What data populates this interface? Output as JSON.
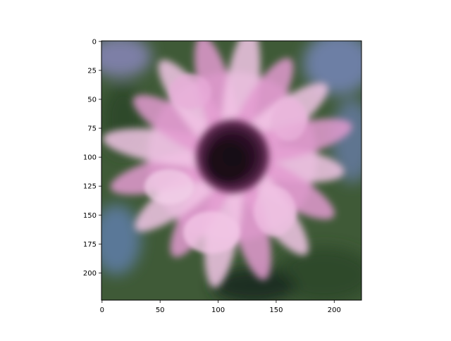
{
  "image": {
    "subject": "pink-daisy-flower-icon",
    "colors": {
      "background_green": "#3f5a37",
      "background_blue": "#6d7fa5",
      "petal_pink": "#e39ad0",
      "petal_light": "#f2c6e6",
      "center_dark": "#2a1025"
    }
  },
  "x_axis": {
    "ticks": [
      "0",
      "50",
      "100",
      "150",
      "200"
    ]
  },
  "y_axis": {
    "ticks": [
      "0",
      "25",
      "50",
      "75",
      "100",
      "125",
      "150",
      "175",
      "200"
    ]
  }
}
